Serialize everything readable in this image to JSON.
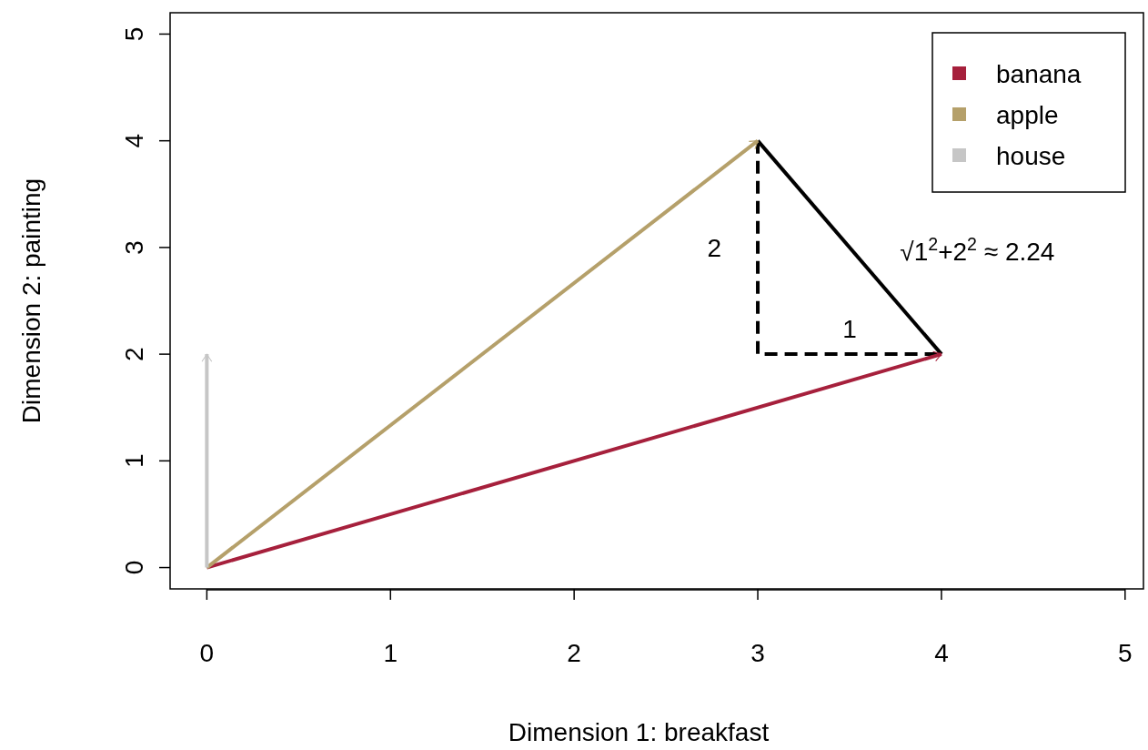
{
  "chart_data": {
    "type": "line",
    "xlabel": "Dimension 1: breakfast",
    "ylabel": "Dimension 2: painting",
    "xlim": [
      -0.2,
      5.1
    ],
    "ylim": [
      -0.2,
      5.2
    ],
    "xticks": [
      0,
      1,
      2,
      3,
      4,
      5
    ],
    "yticks": [
      0,
      1,
      2,
      3,
      4,
      5
    ],
    "grid": false,
    "legend": "top right",
    "marker": "none",
    "series": [
      {
        "x": [
          3,
          3,
          4
        ],
        "values": [
          4,
          2,
          2
        ],
        "color": "#000000",
        "line_style": "dashed"
      },
      {
        "x": [
          3,
          4
        ],
        "values": [
          4,
          2
        ],
        "color": "#000000",
        "line_style": "solid"
      },
      {
        "name": "banana",
        "x": [
          0,
          4
        ],
        "values": [
          0,
          2
        ],
        "color": "#a6203c"
      },
      {
        "name": "apple",
        "x": [
          0,
          3
        ],
        "values": [
          0,
          4
        ],
        "color": "#b5a06a"
      },
      {
        "name": "house",
        "x": [
          0,
          0
        ],
        "values": [
          0,
          2
        ],
        "color": "#c6c6c6"
      }
    ],
    "annotations": [
      "2",
      "1",
      "√1$^{2}$+2$^{2}$ ≈ 2.24"
    ]
  }
}
